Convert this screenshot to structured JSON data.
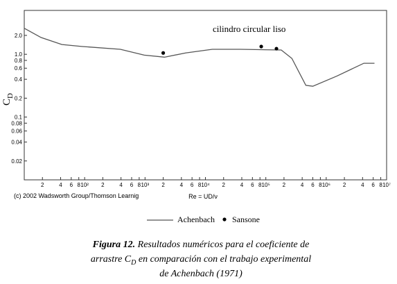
{
  "chart_data": {
    "type": "line",
    "annotation": "cilindro circular liso",
    "y_label": "C",
    "y_label_sub": "D",
    "x_label": "Re = UD/ν",
    "log_x": true,
    "log_y": true,
    "xlim": [
      10,
      10000000
    ],
    "ylim": [
      0.01,
      5
    ],
    "xticks": [
      {
        "value": 20,
        "label": "2"
      },
      {
        "value": 40,
        "label": "4"
      },
      {
        "value": 60,
        "label": "6"
      },
      {
        "value": 80,
        "label": "8"
      },
      {
        "value": 100,
        "label": "10²"
      },
      {
        "value": 200,
        "label": "2"
      },
      {
        "value": 400,
        "label": "4"
      },
      {
        "value": 600,
        "label": "6"
      },
      {
        "value": 800,
        "label": "8"
      },
      {
        "value": 1000,
        "label": "10³"
      },
      {
        "value": 2000,
        "label": "2"
      },
      {
        "value": 4000,
        "label": "4"
      },
      {
        "value": 6000,
        "label": "6"
      },
      {
        "value": 8000,
        "label": "8"
      },
      {
        "value": 10000,
        "label": "10⁴"
      },
      {
        "value": 20000,
        "label": "2"
      },
      {
        "value": 40000,
        "label": "4"
      },
      {
        "value": 60000,
        "label": "6"
      },
      {
        "value": 80000,
        "label": "8"
      },
      {
        "value": 100000,
        "label": "10⁵"
      },
      {
        "value": 200000,
        "label": "2"
      },
      {
        "value": 400000,
        "label": "4"
      },
      {
        "value": 600000,
        "label": "6"
      },
      {
        "value": 800000,
        "label": "8"
      },
      {
        "value": 1000000,
        "label": "10⁶"
      },
      {
        "value": 2000000,
        "label": "2"
      },
      {
        "value": 4000000,
        "label": "4"
      },
      {
        "value": 6000000,
        "label": "6"
      },
      {
        "value": 8000000,
        "label": "8"
      },
      {
        "value": 10000000,
        "label": "10⁷"
      }
    ],
    "yticks": [
      0.02,
      0.04,
      0.06,
      0.08,
      0.1,
      0.2,
      0.4,
      0.6,
      0.8,
      {
        "value": 1,
        "label": "1.0"
      },
      {
        "value": 2,
        "label": "2.0"
      }
    ],
    "series": [
      {
        "name": "Achenbach",
        "type": "line",
        "color": "#555555",
        "x": [
          10,
          19,
          42,
          92,
          390,
          970,
          2100,
          4700,
          13000,
          38000,
          180000,
          270000,
          460000,
          600000,
          1500000,
          4200000,
          6300000
        ],
        "values": [
          2.6,
          1.85,
          1.43,
          1.33,
          1.2,
          0.97,
          0.9,
          1.05,
          1.2,
          1.2,
          1.17,
          0.86,
          0.32,
          0.31,
          0.45,
          0.72,
          0.72
        ]
      },
      {
        "name": "Sansone",
        "type": "scatter",
        "color": "#000000",
        "x": [
          2000,
          84000,
          150000
        ],
        "values": [
          1.05,
          1.33,
          1.23
        ]
      }
    ]
  },
  "credit": "(c) 2002 Wadsworth Group/Thomson Learnig",
  "caption": {
    "label": "Figura 12.",
    "line1": " Resultados numéricos para el coeficiente de",
    "line2_before": "arrastre C",
    "line2_sub": "D",
    "line2_after": "  en comparación con el trabajo experimental",
    "line3": "de Achenbach (1971)"
  }
}
